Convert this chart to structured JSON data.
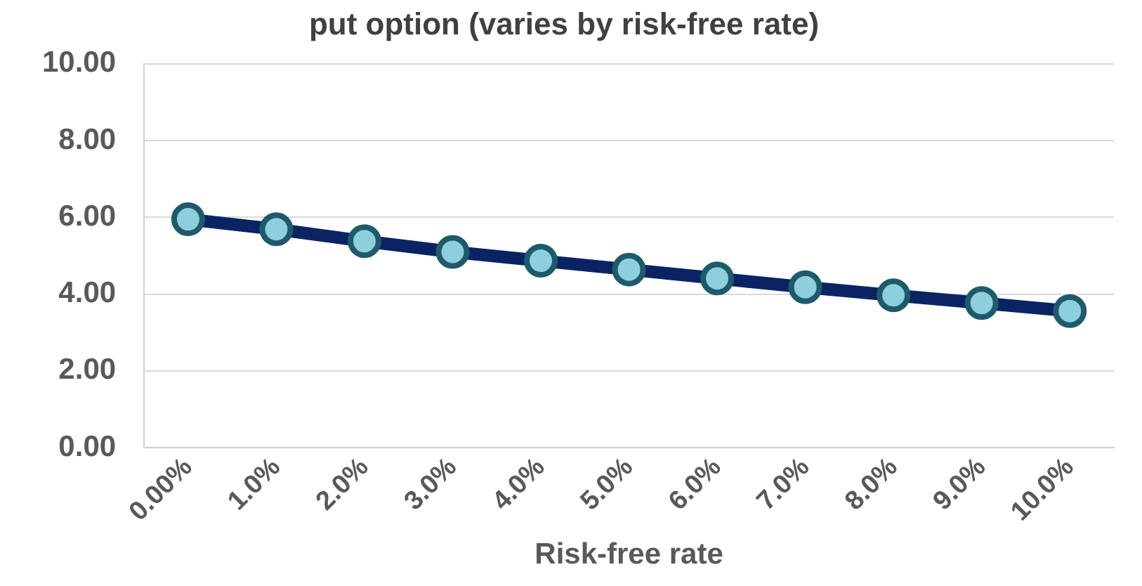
{
  "chart_data": {
    "type": "line",
    "title": "put option (varies by risk-free rate)",
    "xlabel": "Risk-free rate",
    "categories": [
      "0.00%",
      "1.0%",
      "2.0%",
      "3.0%",
      "4.0%",
      "5.0%",
      "6.0%",
      "7.0%",
      "8.0%",
      "9.0%",
      "10.0%"
    ],
    "series": [
      {
        "color": "#0a2463",
        "values": [
          5.95,
          5.69,
          5.38,
          5.1,
          4.87,
          4.64,
          4.41,
          4.18,
          3.97,
          3.77,
          3.56
        ]
      }
    ],
    "ylim": [
      0,
      10
    ],
    "yticks": [
      {
        "value": 0,
        "label": "0.00"
      },
      {
        "value": 2,
        "label": "2.00"
      },
      {
        "value": 4,
        "label": "4.00"
      },
      {
        "value": 6,
        "label": "6.00"
      },
      {
        "value": 8,
        "label": "8.00"
      },
      {
        "value": 10,
        "label": "10.00"
      }
    ],
    "grid": "y",
    "legend": false,
    "marker": "circle",
    "line_style": "solid"
  }
}
